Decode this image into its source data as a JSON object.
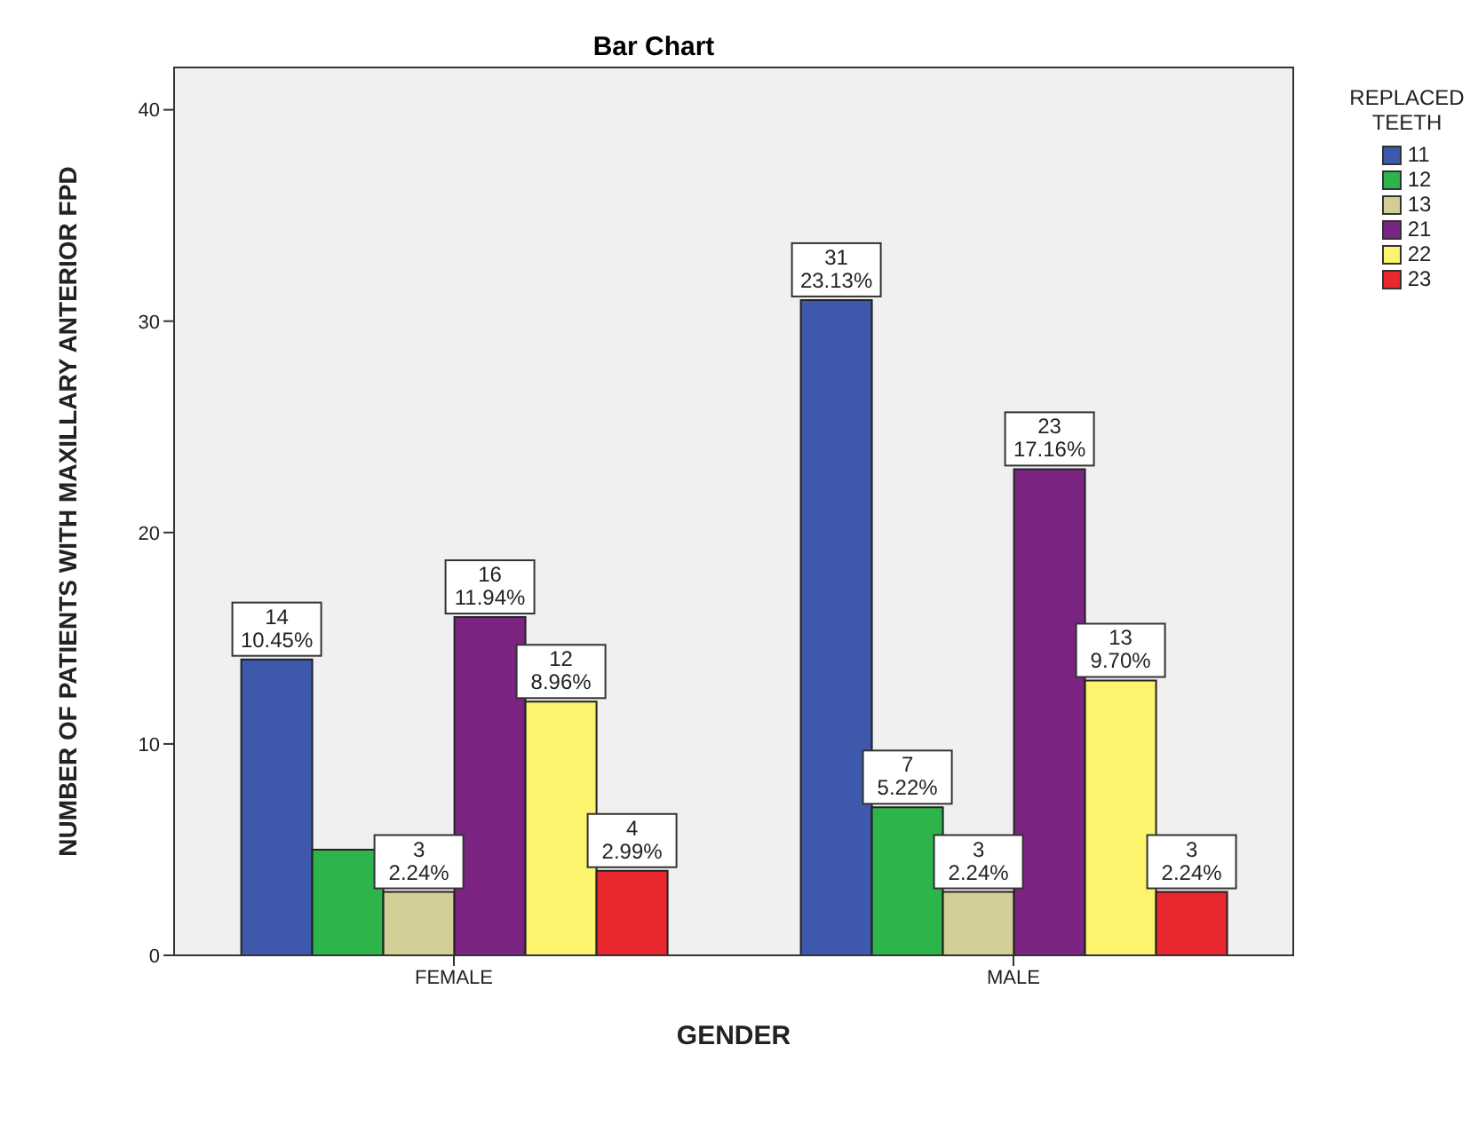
{
  "chart_data": {
    "type": "bar",
    "title": "Bar Chart",
    "xlabel": "GENDER",
    "ylabel": "NUMBER OF PATIENTS WITH MAXILLARY ANTERIOR FPD",
    "legend_title": "REPLACED TEETH",
    "legend": "top right",
    "categories": [
      "FEMALE",
      "MALE"
    ],
    "ylim": [
      0,
      42
    ],
    "yticks": [
      0,
      10,
      20,
      30,
      40
    ],
    "series": [
      {
        "name": "11",
        "color": "#3e58ac",
        "values": [
          14,
          31
        ],
        "value_labels": [
          "14\n10.45%",
          "31\n23.13%"
        ]
      },
      {
        "name": "12",
        "color": "#2db44a",
        "values": [
          5,
          7
        ],
        "value_labels": [
          null,
          "7\n5.22%"
        ]
      },
      {
        "name": "13",
        "color": "#d3ce98",
        "values": [
          3,
          3
        ],
        "value_labels": [
          "3\n2.24%",
          "3\n2.24%"
        ]
      },
      {
        "name": "21",
        "color": "#7b2482",
        "values": [
          16,
          23
        ],
        "value_labels": [
          "16\n11.94%",
          "23\n17.16%"
        ]
      },
      {
        "name": "22",
        "color": "#fbf46c",
        "values": [
          12,
          13
        ],
        "value_labels": [
          "12\n8.96%",
          "13\n9.70%"
        ]
      },
      {
        "name": "23",
        "color": "#e8282e",
        "values": [
          4,
          3
        ],
        "value_labels": [
          "4\n2.99%",
          "3\n2.24%"
        ]
      }
    ]
  }
}
